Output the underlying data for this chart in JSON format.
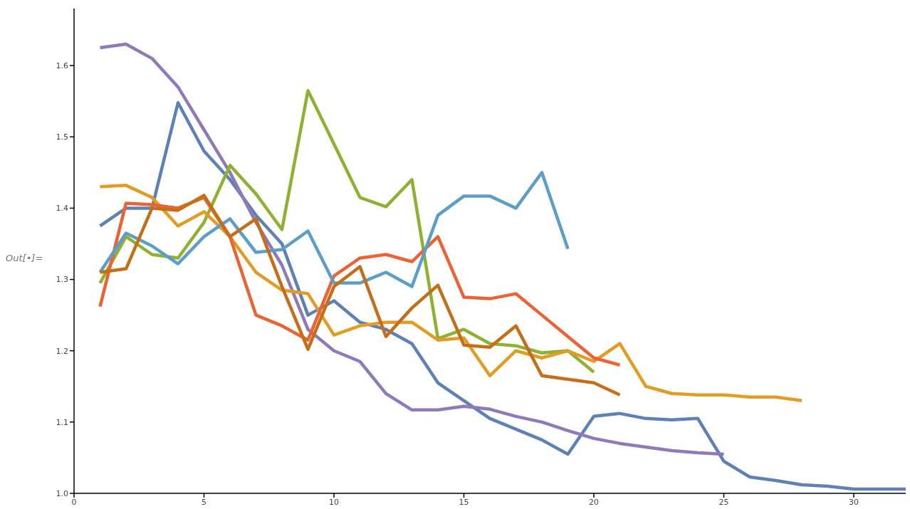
{
  "chart_data": {
    "type": "line",
    "series": [
      {
        "color": "#5e81b5",
        "x": [
          1,
          2,
          3,
          4,
          5,
          6,
          7,
          8,
          9,
          10,
          11,
          12,
          13,
          14,
          15,
          16,
          17,
          18,
          19,
          20,
          21,
          22,
          23,
          24,
          25,
          26,
          27,
          28,
          29,
          30,
          31,
          32
        ],
        "values": [
          1.375,
          1.4,
          1.4,
          1.548,
          1.48,
          1.44,
          1.39,
          1.35,
          1.25,
          1.27,
          1.24,
          1.23,
          1.21,
          1.155,
          1.13,
          1.105,
          1.09,
          1.075,
          1.055,
          1.108,
          1.112,
          1.105,
          1.103,
          1.105,
          1.045,
          1.023,
          1.018,
          1.012,
          1.01,
          1.006,
          1.006,
          1.006
        ]
      },
      {
        "color": "#8f7ab8",
        "x": [
          1,
          2,
          3,
          4,
          5,
          6,
          7,
          8,
          9,
          10,
          11,
          12,
          13,
          14,
          15,
          16,
          17,
          18,
          19,
          20,
          21,
          22,
          23,
          24,
          25
        ],
        "values": [
          1.625,
          1.63,
          1.61,
          1.57,
          1.51,
          1.45,
          1.38,
          1.32,
          1.23,
          1.2,
          1.185,
          1.14,
          1.117,
          1.117,
          1.122,
          1.118,
          1.108,
          1.1,
          1.088,
          1.077,
          1.07,
          1.065,
          1.06,
          1.057,
          1.055
        ]
      },
      {
        "color": "#8fb131",
        "x": [
          1,
          2,
          3,
          4,
          5,
          6,
          7,
          8,
          9,
          10,
          11,
          12,
          13,
          14,
          15,
          16,
          17,
          18,
          19,
          20
        ],
        "values": [
          1.295,
          1.36,
          1.335,
          1.33,
          1.38,
          1.46,
          1.42,
          1.37,
          1.565,
          1.49,
          1.415,
          1.402,
          1.44,
          1.217,
          1.23,
          1.21,
          1.207,
          1.197,
          1.2,
          1.17
        ]
      },
      {
        "color": "#e19c24",
        "x": [
          1,
          2,
          3,
          4,
          5,
          6,
          7,
          8,
          9,
          10,
          11,
          12,
          13,
          14,
          15,
          16,
          17,
          18,
          19,
          20,
          21,
          22,
          23,
          24,
          25,
          26,
          27,
          28
        ],
        "values": [
          1.43,
          1.432,
          1.415,
          1.375,
          1.395,
          1.36,
          1.31,
          1.285,
          1.28,
          1.222,
          1.235,
          1.24,
          1.24,
          1.215,
          1.218,
          1.165,
          1.2,
          1.19,
          1.2,
          1.185,
          1.21,
          1.15,
          1.14,
          1.138,
          1.138,
          1.135,
          1.135,
          1.13
        ]
      },
      {
        "color": "#eb6235",
        "x": [
          1,
          2,
          3,
          4,
          5,
          6,
          7,
          8,
          9,
          10,
          11,
          12,
          13,
          14,
          15,
          16,
          17,
          18,
          19,
          20,
          21
        ],
        "values": [
          1.262,
          1.407,
          1.405,
          1.4,
          1.415,
          1.36,
          1.25,
          1.235,
          1.215,
          1.305,
          1.33,
          1.335,
          1.325,
          1.36,
          1.275,
          1.273,
          1.28,
          1.25,
          1.22,
          1.19,
          1.18
        ]
      },
      {
        "color": "#5d9ec7",
        "x": [
          1,
          2,
          3,
          4,
          5,
          6,
          7,
          8,
          9,
          10,
          11,
          12,
          13,
          14,
          15,
          16,
          17,
          18,
          19
        ],
        "values": [
          1.31,
          1.365,
          1.347,
          1.322,
          1.36,
          1.385,
          1.338,
          1.342,
          1.368,
          1.295,
          1.295,
          1.31,
          1.29,
          1.39,
          1.417,
          1.417,
          1.4,
          1.45,
          1.343
        ]
      },
      {
        "color": "#c56e1a",
        "x": [
          1,
          2,
          3,
          4,
          5,
          6,
          7,
          8,
          9,
          10,
          11,
          12,
          13,
          14,
          15,
          16,
          17,
          18,
          19,
          20,
          21
        ],
        "values": [
          1.31,
          1.315,
          1.4,
          1.397,
          1.418,
          1.36,
          1.385,
          1.29,
          1.202,
          1.29,
          1.318,
          1.22,
          1.26,
          1.292,
          1.208,
          1.205,
          1.235,
          1.165,
          1.16,
          1.155,
          1.138
        ]
      }
    ],
    "xlim": [
      0,
      32
    ],
    "xticks": [
      0,
      5,
      10,
      15,
      20,
      25,
      30
    ],
    "ylim": [
      1,
      1.68
    ],
    "yticks": [
      {
        "value": 1,
        "label": "1.0"
      },
      {
        "value": 1.1,
        "label": "1.1"
      },
      {
        "value": 1.2,
        "label": "1.2"
      },
      {
        "value": 1.3,
        "label": "1.3"
      },
      {
        "value": 1.4,
        "label": "1.4"
      },
      {
        "value": 1.5,
        "label": "1.5"
      },
      {
        "value": 1.6,
        "label": "1.6"
      }
    ],
    "grid": false,
    "marker": "none",
    "line_style": "solid",
    "annotations": [
      "Out[•]="
    ]
  }
}
